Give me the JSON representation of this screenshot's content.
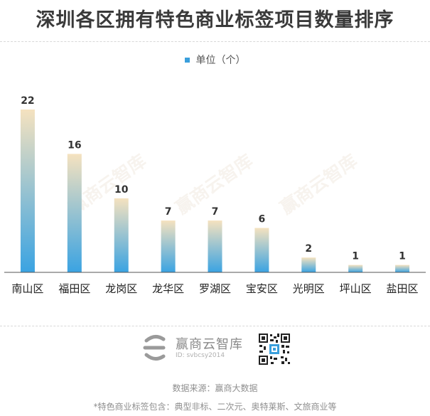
{
  "title": "深圳各区拥有特色商业标签项目数量排序",
  "legend": {
    "label": "单位（个）",
    "color": "#3a9fdc"
  },
  "watermark": "赢商云智库",
  "brand": {
    "name": "赢商云智库",
    "id_text": "ID: svbcsy2014"
  },
  "footer": {
    "source": "数据来源：赢商大数据",
    "note": "*特色商业标签包含：典型非标、二次元、奥特莱斯、文旅商业等"
  },
  "colors": {
    "bar_top": "#f5e2bf",
    "bar_bottom": "#3aa3e2",
    "axis": "#555555"
  },
  "chart_data": {
    "type": "bar",
    "categories": [
      "南山区",
      "福田区",
      "龙岗区",
      "龙华区",
      "罗湖区",
      "宝安区",
      "光明区",
      "坪山区",
      "盐田区"
    ],
    "series": [
      {
        "values": [
          22,
          16,
          10,
          7,
          7,
          6,
          2,
          1,
          1
        ]
      }
    ],
    "ylim": [
      0,
      22
    ],
    "grid": false,
    "data_labels": true
  }
}
